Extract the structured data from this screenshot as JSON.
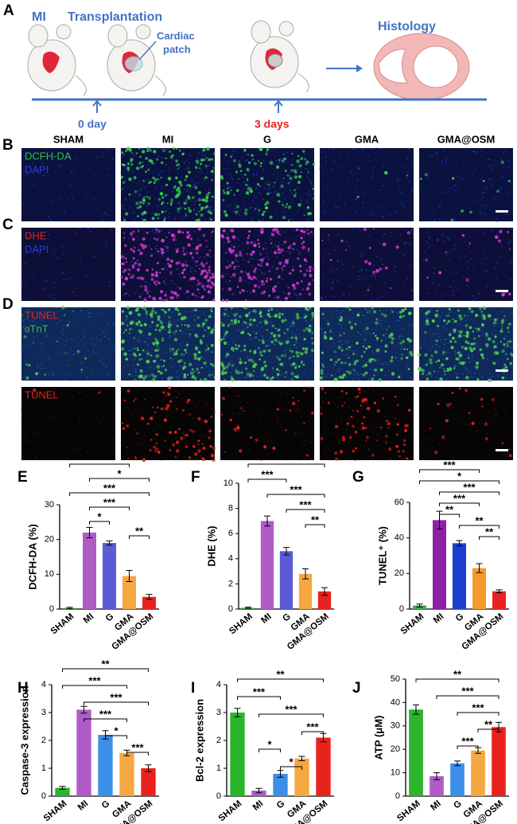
{
  "panel_a": {
    "label": "A",
    "mi": "MI",
    "transplantation": "Transplantation",
    "patch": [
      "Cardiac",
      "patch"
    ],
    "histology": "Histology",
    "day0": "0 day",
    "day3": "3 days"
  },
  "micrographs": {
    "columns": [
      "SHAM",
      "MI",
      "G",
      "GMA",
      "GMA@OSM"
    ],
    "rows": [
      {
        "label": "B",
        "stains": [
          {
            "text": "DCFH-DA",
            "color": "#2fc23a"
          },
          {
            "text": "DAPI",
            "color": "#2b3ddb"
          }
        ]
      },
      {
        "label": "C",
        "stains": [
          {
            "text": "DHE",
            "color": "#e8231f"
          },
          {
            "text": "DAPI",
            "color": "#2b3ddb"
          }
        ]
      },
      {
        "label": "D",
        "stains": [
          {
            "text": "TUNEL",
            "color": "#e8231f"
          },
          {
            "text": "cTnT",
            "color": "#2fc23a"
          }
        ]
      },
      {
        "stains": [
          {
            "text": "TUNEL",
            "color": "#e8231f"
          }
        ]
      }
    ]
  },
  "chart_data": [
    {
      "type": "bar",
      "panel": "E",
      "y_label": "DCFH-DA (%)",
      "categories": [
        "SHAM",
        "MI",
        "G",
        "GMA",
        "GMA@OSM"
      ],
      "values": [
        0.3,
        22,
        19,
        9.5,
        3.5
      ],
      "errors": [
        0.2,
        1.5,
        0.6,
        1.6,
        0.7
      ],
      "colors": [
        "#3cb04a",
        "#b05cc6",
        "#5b5bd6",
        "#f5a742",
        "#e8231f"
      ],
      "ylim": [
        0,
        30
      ],
      "yticks": [
        0,
        10,
        20,
        30
      ],
      "significance": [
        {
          "from": 0,
          "to": 3,
          "label": "***"
        },
        {
          "from": 1,
          "to": 4,
          "label": "*"
        },
        {
          "from": 0,
          "to": 4,
          "label": "***"
        },
        {
          "from": 1,
          "to": 3,
          "label": "***"
        },
        {
          "from": 1,
          "to": 2,
          "label": "*"
        },
        {
          "from": 3,
          "to": 4,
          "label": "**"
        }
      ]
    },
    {
      "type": "bar",
      "panel": "F",
      "y_label": "DHE (%)",
      "categories": [
        "SHAM",
        "MI",
        "G",
        "GMA",
        "GMA@OSM"
      ],
      "values": [
        0.1,
        7,
        4.6,
        2.8,
        1.4
      ],
      "errors": [
        0.05,
        0.4,
        0.3,
        0.4,
        0.3
      ],
      "colors": [
        "#3cb04a",
        "#b05cc6",
        "#5b5bd6",
        "#f5a742",
        "#e8231f"
      ],
      "ylim": [
        0,
        10
      ],
      "yticks": [
        0,
        2,
        4,
        6,
        8,
        10
      ],
      "significance": [
        {
          "from": 0,
          "to": 4,
          "label": "*"
        },
        {
          "from": 0,
          "to": 2,
          "label": "***"
        },
        {
          "from": 1,
          "to": 4,
          "label": "***"
        },
        {
          "from": 2,
          "to": 4,
          "label": "***"
        },
        {
          "from": 3,
          "to": 4,
          "label": "**"
        }
      ]
    },
    {
      "type": "bar",
      "panel": "G",
      "y_label": "TUNEL⁺ (%)",
      "categories": [
        "SHAM",
        "MI",
        "G",
        "GMA",
        "GMA@OSM"
      ],
      "values": [
        2,
        50,
        37,
        23,
        10
      ],
      "errors": [
        0.8,
        5,
        1.5,
        2.5,
        0.8
      ],
      "colors": [
        "#3cb04a",
        "#8e22a6",
        "#1c3fcf",
        "#f59a2a",
        "#e8231f"
      ],
      "ylim": [
        0,
        60
      ],
      "yticks": [
        0,
        20,
        40,
        60
      ],
      "significance": [
        {
          "from": 0,
          "to": 3,
          "label": "***"
        },
        {
          "from": 0,
          "to": 4,
          "label": "*"
        },
        {
          "from": 1,
          "to": 4,
          "label": "***"
        },
        {
          "from": 1,
          "to": 3,
          "label": "***"
        },
        {
          "from": 1,
          "to": 2,
          "label": "**"
        },
        {
          "from": 2,
          "to": 4,
          "label": "**"
        },
        {
          "from": 3,
          "to": 4,
          "label": "**"
        }
      ]
    },
    {
      "type": "bar",
      "panel": "H",
      "y_label": "Caspase-3 expression",
      "categories": [
        "SHAM",
        "MI",
        "G",
        "GMA",
        "GMA@OSM"
      ],
      "values": [
        0.3,
        3.1,
        2.2,
        1.55,
        1.0
      ],
      "errors": [
        0.05,
        0.12,
        0.15,
        0.1,
        0.12
      ],
      "colors": [
        "#2ab52a",
        "#b05cc6",
        "#3b8fe8",
        "#f5a742",
        "#e8231f"
      ],
      "ylim": [
        0,
        4
      ],
      "yticks": [
        0,
        1,
        2,
        3,
        4
      ],
      "significance": [
        {
          "from": 0,
          "to": 4,
          "label": "**"
        },
        {
          "from": 0,
          "to": 3,
          "label": "***"
        },
        {
          "from": 1,
          "to": 4,
          "label": "***"
        },
        {
          "from": 1,
          "to": 3,
          "label": "***"
        },
        {
          "from": 2,
          "to": 3,
          "label": "*"
        },
        {
          "from": 3,
          "to": 4,
          "label": "***"
        }
      ]
    },
    {
      "type": "bar",
      "panel": "I",
      "y_label": "Bcl-2 expression",
      "categories": [
        "SHAM",
        "MI",
        "G",
        "GMA",
        "GMA@OSM"
      ],
      "values": [
        3.0,
        0.2,
        0.8,
        1.35,
        2.1
      ],
      "errors": [
        0.15,
        0.08,
        0.12,
        0.08,
        0.15
      ],
      "colors": [
        "#2ab52a",
        "#b05cc6",
        "#3b8fe8",
        "#f5a742",
        "#e8231f"
      ],
      "ylim": [
        0,
        4
      ],
      "yticks": [
        0,
        1,
        2,
        3,
        4
      ],
      "significance": [
        {
          "from": 0,
          "to": 4,
          "label": "**"
        },
        {
          "from": 0,
          "to": 2,
          "label": "***"
        },
        {
          "from": 1,
          "to": 4,
          "label": "***"
        },
        {
          "from": 3,
          "to": 4,
          "label": "***"
        },
        {
          "from": 1,
          "to": 2,
          "label": "*"
        },
        {
          "from": 2,
          "to": 3,
          "label": "*"
        }
      ]
    },
    {
      "type": "bar",
      "panel": "J",
      "y_label": "ATP (μM)",
      "categories": [
        "SHAM",
        "MI",
        "G",
        "GMA",
        "GMA@OSM"
      ],
      "values": [
        37,
        8.5,
        14,
        19.5,
        29.5
      ],
      "errors": [
        2,
        1.5,
        1,
        1.2,
        2
      ],
      "colors": [
        "#2ab52a",
        "#b05cc6",
        "#3b8fe8",
        "#f5a742",
        "#e8231f"
      ],
      "ylim": [
        0,
        50
      ],
      "yticks": [
        0,
        10,
        20,
        30,
        40,
        50
      ],
      "significance": [
        {
          "from": 0,
          "to": 4,
          "label": "**"
        },
        {
          "from": 1,
          "to": 4,
          "label": "***"
        },
        {
          "from": 2,
          "to": 4,
          "label": "***"
        },
        {
          "from": 3,
          "to": 4,
          "label": "**"
        },
        {
          "from": 2,
          "to": 3,
          "label": "***"
        }
      ]
    }
  ]
}
